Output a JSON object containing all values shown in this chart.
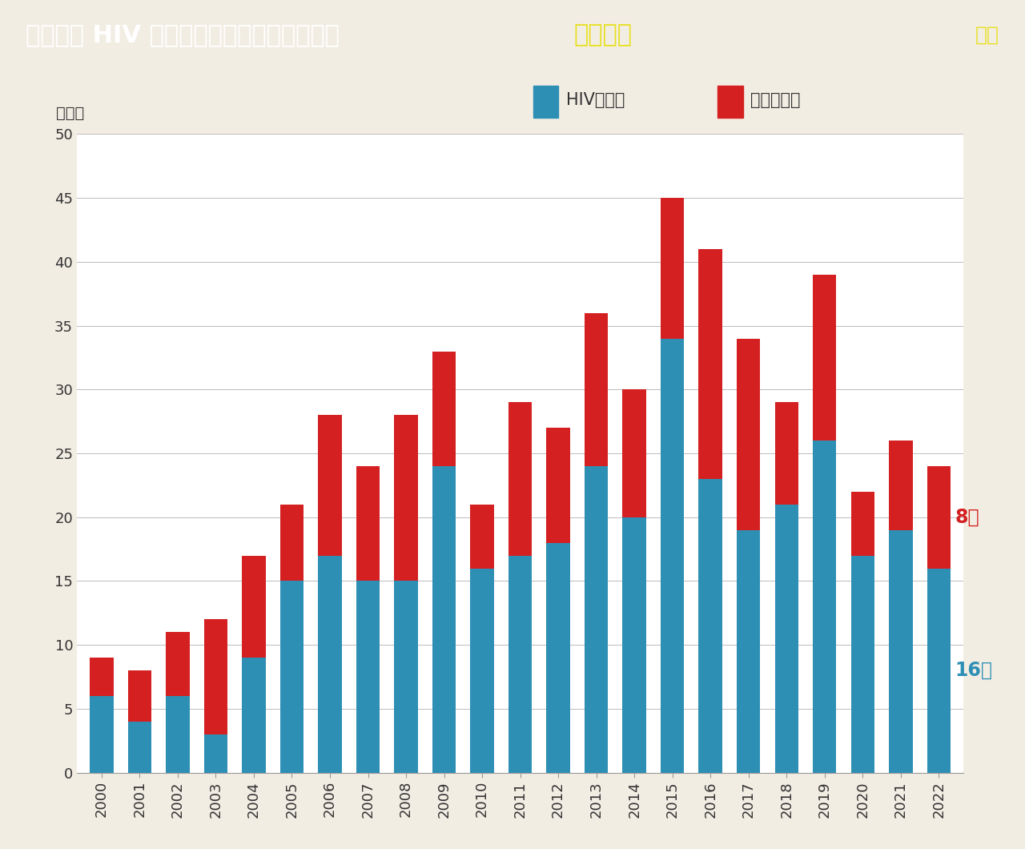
{
  "years": [
    2000,
    2001,
    2002,
    2003,
    2004,
    2005,
    2006,
    2007,
    2008,
    2009,
    2010,
    2011,
    2012,
    2013,
    2014,
    2015,
    2016,
    2017,
    2018,
    2019,
    2020,
    2021,
    2022
  ],
  "hiv": [
    6,
    4,
    6,
    3,
    9,
    15,
    17,
    15,
    15,
    24,
    16,
    17,
    18,
    24,
    20,
    34,
    23,
    19,
    21,
    26,
    17,
    19,
    16
  ],
  "aids": [
    3,
    4,
    5,
    9,
    8,
    6,
    11,
    9,
    13,
    9,
    5,
    12,
    9,
    12,
    10,
    11,
    18,
    15,
    8,
    13,
    5,
    7,
    8
  ],
  "hiv_color": "#2E8FB5",
  "aids_color": "#D42020",
  "title_normal": "北海道の HIV 感染者およびエイズ患者数　",
  "title_highlight": "（新規）",
  "title_color": "#ffffff",
  "title_highlight_color": "#e8e020",
  "fig_label": "図１",
  "fig_label_color": "#e8e020",
  "title_bg_color": "#2A8CB5",
  "plot_bg_color": "#ffffff",
  "outer_bg_color": "#f2ede3",
  "ylabel": "（人）",
  "legend_hiv": "HIV感染者",
  "legend_aids": "エイズ患者",
  "ylim": [
    0,
    50
  ],
  "yticks": [
    0,
    5,
    10,
    15,
    20,
    25,
    30,
    35,
    40,
    45,
    50
  ],
  "annotation_hiv_val": "16人",
  "annotation_aids_val": "8人",
  "annotation_hiv_color": "#2E8FB5",
  "annotation_aids_color": "#D42020",
  "title_fontsize": 22,
  "axis_fontsize": 13,
  "legend_fontsize": 15
}
